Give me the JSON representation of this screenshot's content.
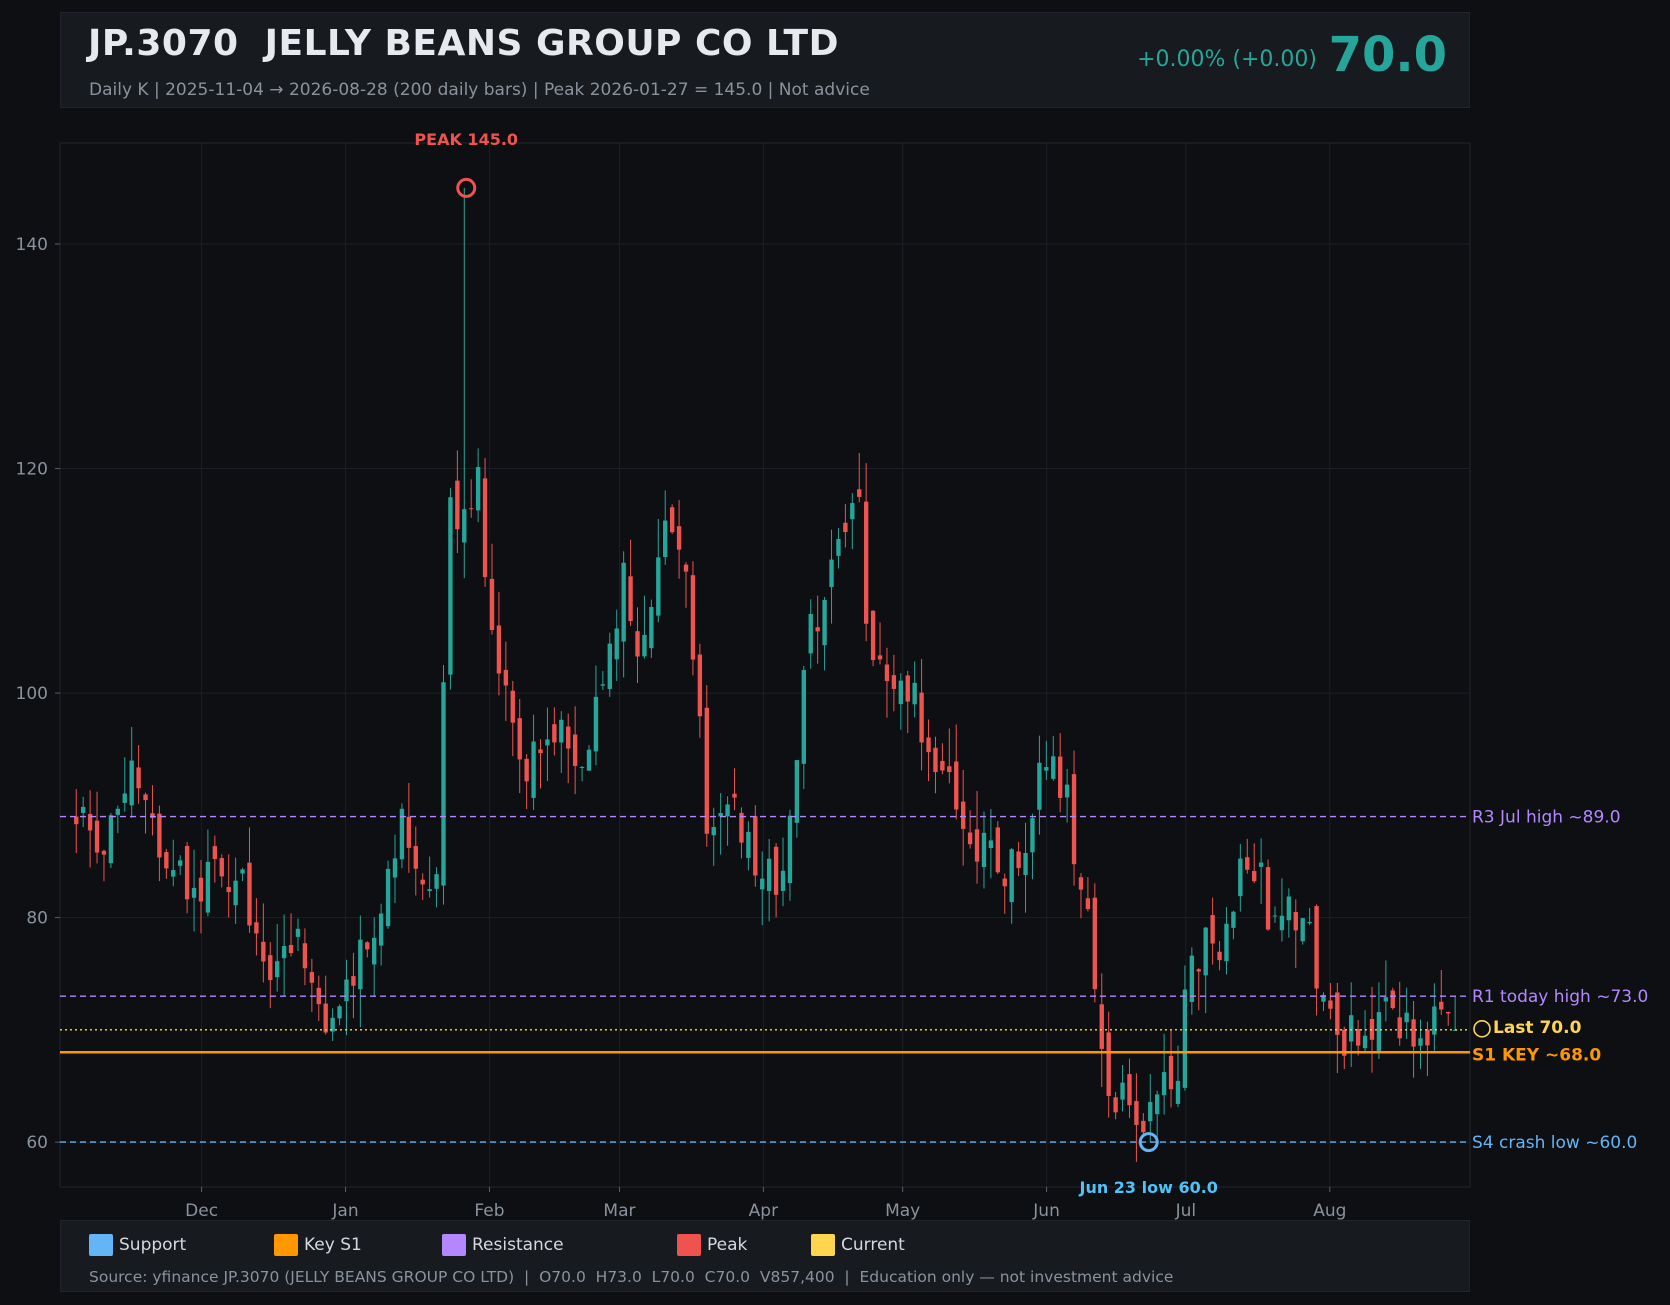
{
  "header": {
    "ticker": "JP.3070  JELLY BEANS GROUP CO LTD",
    "subtitle": "Daily K  |  2025-11-04 → 2026-08-28 (200 daily bars)  |  Peak 2026-01-27 = 145.0  |  Not advice",
    "change": "+0.00%  (+0.00)",
    "price": "70.0"
  },
  "legend": {
    "items": [
      {
        "label": "Support",
        "color": "#64b5f6"
      },
      {
        "label": "Key S1",
        "color": "#ff9800"
      },
      {
        "label": "Resistance",
        "color": "#b388ff"
      },
      {
        "label": "Peak",
        "color": "#ef5350"
      },
      {
        "label": "Current",
        "color": "#ffd54f"
      }
    ],
    "source": "Source: yfinance JP.3070 (JELLY BEANS GROUP CO LTD)  |  O70.0  H73.0  L70.0  C70.0  V857,400  |  Education only — not investment advice"
  },
  "colors": {
    "up": "#26a69a",
    "down": "#ef5350",
    "support": "#64b5f6",
    "key_support": "#ff9800",
    "resistance": "#b388ff",
    "peak": "#ef5350",
    "current": "#ffd54f",
    "grid": "#1c2026",
    "axis_text": "#8b929c"
  },
  "chart_data": {
    "type": "candlestick",
    "date_range": [
      "2025-11-04",
      "2026-08-28"
    ],
    "bar_count": 200,
    "ylim": [
      56,
      149
    ],
    "yticks": [
      60,
      80,
      100,
      120,
      140
    ],
    "xticks": [
      {
        "label": "Dec",
        "date": "2025-12-01"
      },
      {
        "label": "Jan",
        "date": "2026-01-01"
      },
      {
        "label": "Feb",
        "date": "2026-02-01"
      },
      {
        "label": "Mar",
        "date": "2026-03-01"
      },
      {
        "label": "Apr",
        "date": "2026-04-01"
      },
      {
        "label": "May",
        "date": "2026-05-01"
      },
      {
        "label": "Jun",
        "date": "2026-06-01"
      },
      {
        "label": "Jul",
        "date": "2026-07-01"
      },
      {
        "label": "Aug",
        "date": "2026-08-01"
      }
    ],
    "grid": true,
    "levels": [
      {
        "label": "R3 Jul high ~89.0",
        "value": 89.0,
        "kind": "resistance",
        "style": "dashed"
      },
      {
        "label": "R1 today high ~73.0",
        "value": 73.0,
        "kind": "resistance",
        "style": "dashed"
      },
      {
        "label": "Last 70.0",
        "value": 70.0,
        "kind": "current",
        "style": "dotted"
      },
      {
        "label": "S1 KEY ~68.0",
        "value": 68.0,
        "kind": "key_support",
        "style": "solid"
      },
      {
        "label": "S4 crash low ~60.0",
        "value": 60.0,
        "kind": "support",
        "style": "dashed"
      }
    ],
    "annotations": [
      {
        "label": "PEAK 145.0",
        "date": "2026-01-27",
        "value": 145.0,
        "kind": "peak"
      },
      {
        "label": "Jun 23 low 60.0",
        "date": "2026-06-23",
        "value": 60.0,
        "kind": "support"
      }
    ],
    "anchors": [
      {
        "date": "2025-11-04",
        "close": 88
      },
      {
        "date": "2025-11-10",
        "close": 87
      },
      {
        "date": "2025-11-14",
        "close": 93
      },
      {
        "date": "2025-11-20",
        "close": 89
      },
      {
        "date": "2025-11-27",
        "close": 84
      },
      {
        "date": "2025-12-03",
        "close": 83
      },
      {
        "date": "2025-12-10",
        "close": 82
      },
      {
        "date": "2025-12-16",
        "close": 75
      },
      {
        "date": "2025-12-22",
        "close": 77
      },
      {
        "date": "2025-12-26",
        "close": 72
      },
      {
        "date": "2026-01-02",
        "close": 73
      },
      {
        "date": "2026-01-08",
        "close": 80
      },
      {
        "date": "2026-01-13",
        "close": 90
      },
      {
        "date": "2026-01-16",
        "close": 85
      },
      {
        "date": "2026-01-21",
        "close": 84
      },
      {
        "date": "2026-01-23",
        "close": 117
      },
      {
        "date": "2026-01-27",
        "close": 116,
        "high": 145
      },
      {
        "date": "2026-01-29",
        "close": 121
      },
      {
        "date": "2026-02-02",
        "close": 105
      },
      {
        "date": "2026-02-05",
        "close": 99
      },
      {
        "date": "2026-02-10",
        "close": 93
      },
      {
        "date": "2026-02-16",
        "close": 99
      },
      {
        "date": "2026-02-20",
        "close": 93
      },
      {
        "date": "2026-02-26",
        "close": 100
      },
      {
        "date": "2026-03-02",
        "close": 110
      },
      {
        "date": "2026-03-06",
        "close": 104
      },
      {
        "date": "2026-03-11",
        "close": 116
      },
      {
        "date": "2026-03-16",
        "close": 109
      },
      {
        "date": "2026-03-20",
        "close": 88
      },
      {
        "date": "2026-03-25",
        "close": 91
      },
      {
        "date": "2026-03-31",
        "close": 82
      },
      {
        "date": "2026-04-06",
        "close": 86
      },
      {
        "date": "2026-04-10",
        "close": 104
      },
      {
        "date": "2026-04-16",
        "close": 112
      },
      {
        "date": "2026-04-21",
        "close": 119
      },
      {
        "date": "2026-04-24",
        "close": 101
      },
      {
        "date": "2026-04-29",
        "close": 101
      },
      {
        "date": "2026-05-05",
        "close": 98
      },
      {
        "date": "2026-05-11",
        "close": 92
      },
      {
        "date": "2026-05-19",
        "close": 86
      },
      {
        "date": "2026-05-26",
        "close": 84
      },
      {
        "date": "2026-06-02",
        "close": 96
      },
      {
        "date": "2026-06-05",
        "close": 91
      },
      {
        "date": "2026-06-10",
        "close": 81
      },
      {
        "date": "2026-06-12",
        "close": 72
      },
      {
        "date": "2026-06-16",
        "close": 62
      },
      {
        "date": "2026-06-19",
        "close": 64
      },
      {
        "date": "2026-06-23",
        "close": 61,
        "low": 60
      },
      {
        "date": "2026-06-29",
        "close": 66
      },
      {
        "date": "2026-07-02",
        "close": 76
      },
      {
        "date": "2026-07-08",
        "close": 78
      },
      {
        "date": "2026-07-14",
        "close": 86
      },
      {
        "date": "2026-07-20",
        "close": 80
      },
      {
        "date": "2026-07-27",
        "close": 80
      },
      {
        "date": "2026-07-31",
        "close": 70
      },
      {
        "date": "2026-08-06",
        "close": 69
      },
      {
        "date": "2026-08-12",
        "close": 71
      },
      {
        "date": "2026-08-20",
        "close": 70
      },
      {
        "date": "2026-08-28",
        "close": 70,
        "high": 73
      }
    ]
  }
}
